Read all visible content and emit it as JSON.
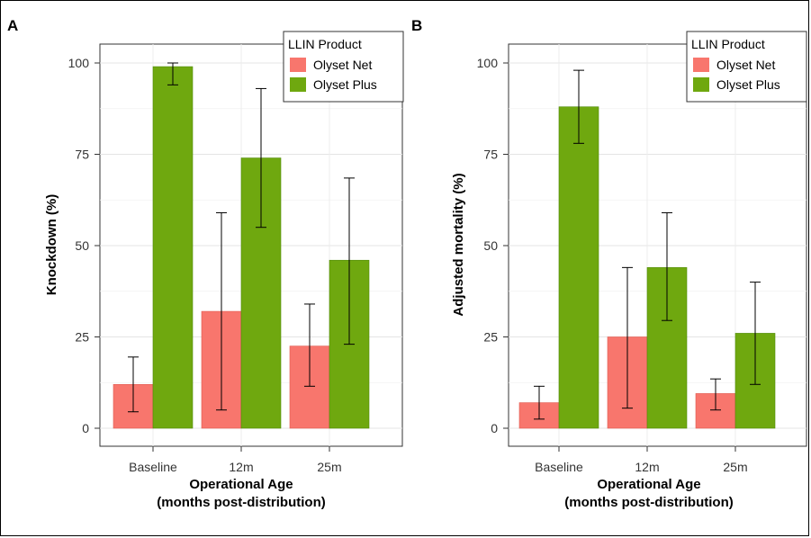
{
  "chart_data": [
    {
      "panel": "A",
      "type": "bar",
      "categories": [
        "Baseline",
        "12m",
        "25m"
      ],
      "series": [
        {
          "name": "Olyset Net",
          "values": [
            12,
            32,
            22.5
          ],
          "error_low": [
            4.5,
            5,
            11.5
          ],
          "error_high": [
            19.5,
            59,
            34
          ]
        },
        {
          "name": "Olyset Plus",
          "values": [
            99,
            74,
            46
          ],
          "error_low": [
            94,
            55,
            23
          ],
          "error_high": [
            100,
            93,
            68.5
          ]
        }
      ],
      "ylabel": "Knockdown (%)",
      "xlabel": "Operational Age",
      "xlabel2": "(months post-distribution)",
      "yticks": [
        "0",
        "25",
        "50",
        "75",
        "100"
      ],
      "ylim": [
        0,
        105
      ],
      "legend_title": "LLIN Product",
      "legend_position": "top-right",
      "grid": true
    },
    {
      "panel": "B",
      "type": "bar",
      "categories": [
        "Baseline",
        "12m",
        "25m"
      ],
      "series": [
        {
          "name": "Olyset Net",
          "values": [
            7,
            25,
            9.5
          ],
          "error_low": [
            2.5,
            5.5,
            5
          ],
          "error_high": [
            11.5,
            44,
            13.5
          ]
        },
        {
          "name": "Olyset Plus",
          "values": [
            88,
            44,
            26
          ],
          "error_low": [
            78,
            29.5,
            12
          ],
          "error_high": [
            98,
            59,
            40
          ]
        }
      ],
      "ylabel": "Adjusted mortality (%)",
      "xlabel": "Operational Age",
      "xlabel2": "(months post-distribution)",
      "yticks": [
        "0",
        "25",
        "50",
        "75",
        "100"
      ],
      "ylim": [
        0,
        105
      ],
      "legend_title": "LLIN Product",
      "legend_position": "top-right",
      "grid": true
    }
  ],
  "colors": {
    "Olyset Net": "#f8766d",
    "Olyset Plus": "#6fa80f",
    "Olyset Net edge": "#e05a50",
    "Olyset Plus edge": "#4f8a06"
  }
}
